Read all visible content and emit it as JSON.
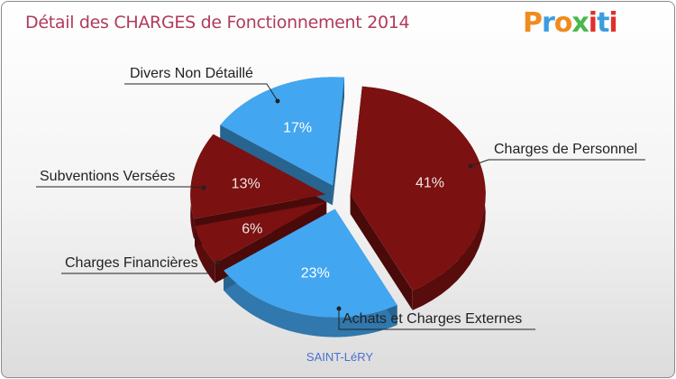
{
  "chart_data": {
    "type": "pie",
    "title": "Détail des CHARGES de Fonctionnement 2014",
    "slices": [
      {
        "label": "Charges de Personnel",
        "value": 41,
        "value_label": "41%",
        "color": "#7b1111"
      },
      {
        "label": "Achats et Charges Externes",
        "value": 23,
        "value_label": "23%",
        "color": "#42a6f0"
      },
      {
        "label": "Charges Financières",
        "value": 6,
        "value_label": "6%",
        "color": "#7b1111"
      },
      {
        "label": "Subventions Versées",
        "value": 13,
        "value_label": "13%",
        "color": "#7b1111"
      },
      {
        "label": "Divers Non Détaillé",
        "value": 17,
        "value_label": "17%",
        "color": "#42a6f0"
      }
    ]
  },
  "logo": {
    "text": "Proxiti",
    "colors": [
      "#f08c1e",
      "#3a9de0",
      "#f08c1e",
      "#4ab84a",
      "#e0302a",
      "#3a9de0",
      "#e0302a"
    ]
  },
  "commune": "SAINT-LéRY"
}
